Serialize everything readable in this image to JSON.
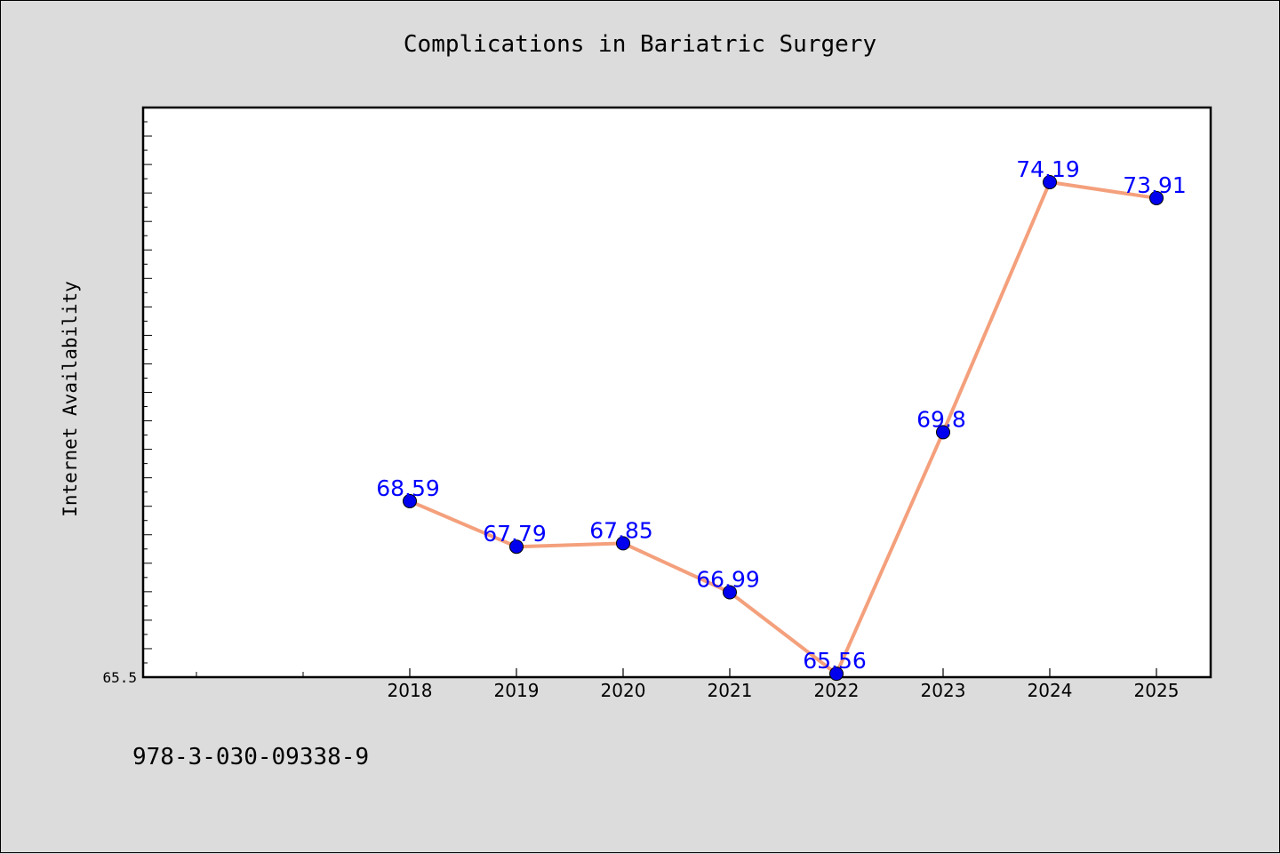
{
  "chart_data": {
    "type": "line",
    "title": "Complications in Bariatric Surgery",
    "xlabel": "",
    "ylabel": "Internet Availability",
    "categories": [
      "2018",
      "2019",
      "2020",
      "2021",
      "2022",
      "2023",
      "2024",
      "2025"
    ],
    "series": [
      {
        "values": [
          68.59,
          67.79,
          67.85,
          66.99,
          65.56,
          69.8,
          74.19,
          73.91
        ]
      }
    ],
    "data_labels": [
      "68.59",
      "67.79",
      "67.85",
      "66.99",
      "65.56",
      "69.8",
      "74.19",
      "73.91"
    ],
    "ylim": [
      65.5,
      75.5
    ],
    "yticklabels_shown": [
      "65.5"
    ],
    "grid": false,
    "colors": {
      "line": "#f4a07c",
      "marker": "#0000ee",
      "label": "#0000ff",
      "background": "#dcdcdc",
      "plot_area": "#ffffff"
    }
  },
  "footer": {
    "identifier": "978-3-030-09338-9"
  }
}
